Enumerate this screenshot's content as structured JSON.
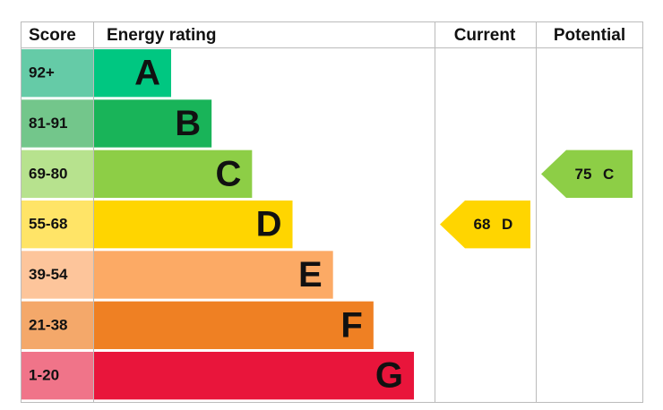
{
  "chart_data": {
    "type": "epc",
    "headers": {
      "score": "Score",
      "rating": "Energy rating",
      "current": "Current",
      "potential": "Potential"
    },
    "rows": [
      {
        "score": "92+",
        "band": "A",
        "color": "#00c781",
        "score_color": "#65cba7"
      },
      {
        "score": "81-91",
        "band": "B",
        "color": "#19b459",
        "score_color": "#73c68b"
      },
      {
        "score": "69-80",
        "band": "C",
        "color": "#8dce46",
        "score_color": "#b7e28e"
      },
      {
        "score": "55-68",
        "band": "D",
        "color": "#ffd500",
        "score_color": "#ffe467"
      },
      {
        "score": "39-54",
        "band": "E",
        "color": "#fcaa65",
        "score_color": "#fdc59b"
      },
      {
        "score": "21-38",
        "band": "F",
        "color": "#ef8023",
        "score_color": "#f4a86a"
      },
      {
        "score": "1-20",
        "band": "G",
        "color": "#e9153b",
        "score_color": "#f07489"
      }
    ],
    "current": {
      "value": 68,
      "band": "D"
    },
    "potential": {
      "value": 75,
      "band": "C"
    }
  }
}
